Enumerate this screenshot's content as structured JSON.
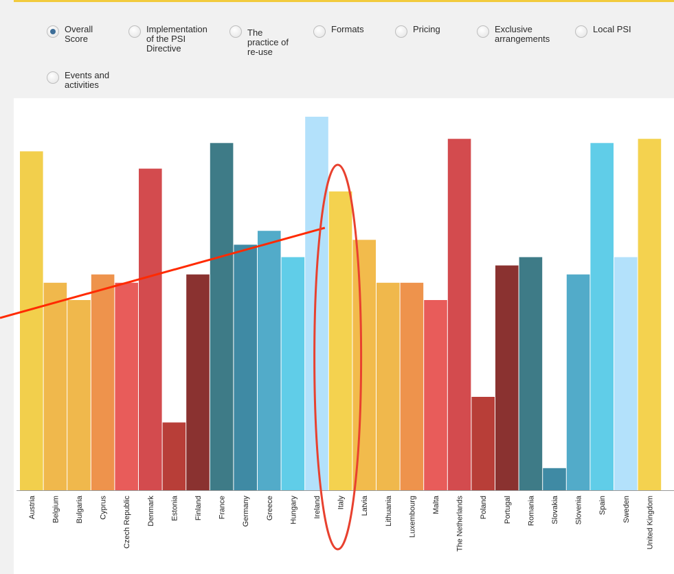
{
  "options": [
    {
      "label": "Overall\nScore",
      "checked": true
    },
    {
      "label": "Implementation\nof the PSI\nDirective",
      "checked": false
    },
    {
      "label": "The\npractice of\nre-use",
      "checked": false
    },
    {
      "label": "Formats",
      "checked": false
    },
    {
      "label": "Pricing",
      "checked": false
    },
    {
      "label": "Exclusive\narrangements",
      "checked": false
    },
    {
      "label": "Local PSI",
      "checked": false
    },
    {
      "label": "Events and\nactivities",
      "checked": false
    }
  ],
  "colors": {
    "accent": "#f2cb3e",
    "annotation": "#ff2a00",
    "highlight_ellipse": "#e8412f",
    "axis": "#999999"
  },
  "chart_data": {
    "type": "bar",
    "ylim": [
      0,
      540
    ],
    "highlighted": "Italy",
    "categories": [
      "Austria",
      "Belgium",
      "Bulgaria",
      "Cyprus",
      "Czech Republic",
      "Denmark",
      "Estonia",
      "Finland",
      "France",
      "Germany",
      "Greece",
      "Hungary",
      "Ireland",
      "Italy",
      "Latvia",
      "Lithuania",
      "Luxembourg",
      "Malta",
      "The Netherlands",
      "Poland",
      "Portugal",
      "Romania",
      "Slovakia",
      "Slovenia",
      "Spain",
      "Sweden",
      "United Kingdom"
    ],
    "values": [
      490,
      300,
      275,
      312,
      300,
      465,
      98,
      312,
      502,
      355,
      375,
      337,
      540,
      432,
      362,
      300,
      300,
      275,
      508,
      135,
      325,
      337,
      32,
      312,
      502,
      337,
      508
    ],
    "bar_colors": [
      "#f2cf4c",
      "#f0b84c",
      "#f0b84c",
      "#ee934c",
      "#e85c5a",
      "#d34b4e",
      "#b83e38",
      "#8a3230",
      "#3e7b87",
      "#3f8aa4",
      "#52abc9",
      "#60cde8",
      "#b3e1fb",
      "#f4d24f",
      "#f2bb4c",
      "#f0b84c",
      "#ee934c",
      "#e85c5a",
      "#d34b4e",
      "#b83e38",
      "#8a3230",
      "#3e7b87",
      "#3f8aa4",
      "#52abc9",
      "#60cde8",
      "#b3e1fb",
      "#f4d24f"
    ]
  }
}
